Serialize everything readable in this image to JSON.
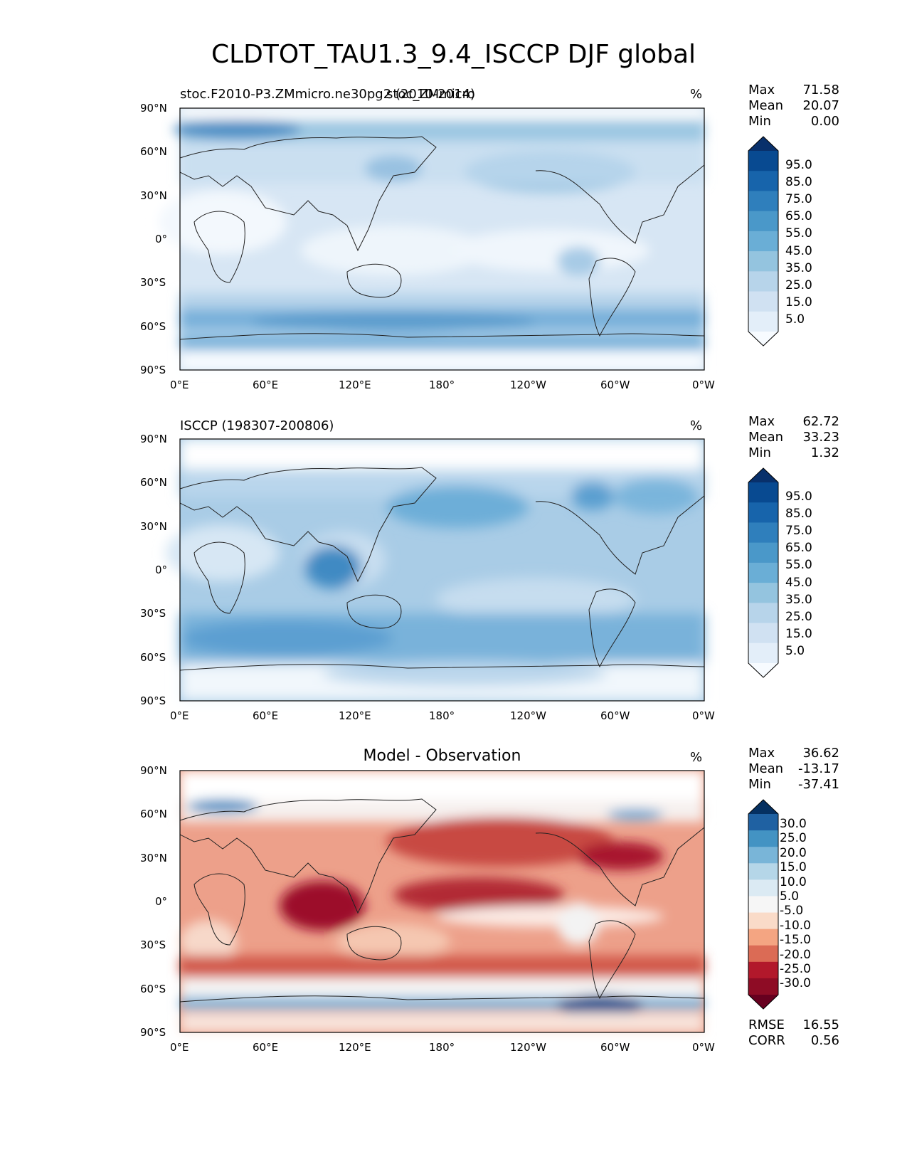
{
  "title": "CLDTOT_TAU1.3_9.4_ISCCP DJF global",
  "units": "%",
  "x_ticks": [
    "0°E",
    "60°E",
    "120°E",
    "180°",
    "120°W",
    "60°W",
    "0°W"
  ],
  "y_ticks": [
    "90°N",
    "60°N",
    "30°N",
    "0°",
    "30°S",
    "60°S",
    "90°S"
  ],
  "panels": [
    {
      "left_label": "stoc.F2010-P3.ZMmicro.ne30pg2 (2010-2014)",
      "center_label": "stoc_ZMmicro",
      "stats": [
        {
          "name": "Max",
          "value": "71.58"
        },
        {
          "name": "Mean",
          "value": "20.07"
        },
        {
          "name": "Min",
          "value": "0.00"
        }
      ],
      "colorbar": {
        "labels": [
          "95.0",
          "85.0",
          "75.0",
          "65.0",
          "55.0",
          "45.0",
          "35.0",
          "25.0",
          "15.0",
          "5.0"
        ],
        "colors": [
          "#08306b",
          "#084a91",
          "#1764ab",
          "#2f7fbc",
          "#4a98c9",
          "#6aaed6",
          "#94c4df",
          "#b7d4ea",
          "#d0e1f2",
          "#e3eef9",
          "#f7fbff"
        ]
      }
    },
    {
      "left_label": "ISCCP (198307-200806)",
      "center_label": "",
      "stats": [
        {
          "name": "Max",
          "value": "62.72"
        },
        {
          "name": "Mean",
          "value": "33.23"
        },
        {
          "name": "Min",
          "value": "1.32"
        }
      ],
      "colorbar": {
        "labels": [
          "95.0",
          "85.0",
          "75.0",
          "65.0",
          "55.0",
          "45.0",
          "35.0",
          "25.0",
          "15.0",
          "5.0"
        ],
        "colors": [
          "#08306b",
          "#084a91",
          "#1764ab",
          "#2f7fbc",
          "#4a98c9",
          "#6aaed6",
          "#94c4df",
          "#b7d4ea",
          "#d0e1f2",
          "#e3eef9",
          "#f7fbff"
        ]
      }
    },
    {
      "left_label": "",
      "center_label": "Model - Observation",
      "stats": [
        {
          "name": "Max",
          "value": "36.62"
        },
        {
          "name": "Mean",
          "value": "-13.17"
        },
        {
          "name": "Min",
          "value": "-37.41"
        }
      ],
      "extra_stats": [
        {
          "name": "RMSE",
          "value": "16.55"
        },
        {
          "name": "CORR",
          "value": "0.56"
        }
      ],
      "colorbar": {
        "labels": [
          "30.0",
          "25.0",
          "20.0",
          "15.0",
          "10.0",
          "5.0",
          "-5.0",
          "-10.0",
          "-15.0",
          "-20.0",
          "-25.0",
          "-30.0"
        ],
        "colors": [
          "#053061",
          "#1f61a2",
          "#4393c3",
          "#79b5d8",
          "#b5d6e8",
          "#dbeaf3",
          "#f6f6f6",
          "#fadbc8",
          "#f4a582",
          "#db6b55",
          "#b2182b",
          "#8e0c25",
          "#67001f"
        ]
      }
    }
  ]
}
